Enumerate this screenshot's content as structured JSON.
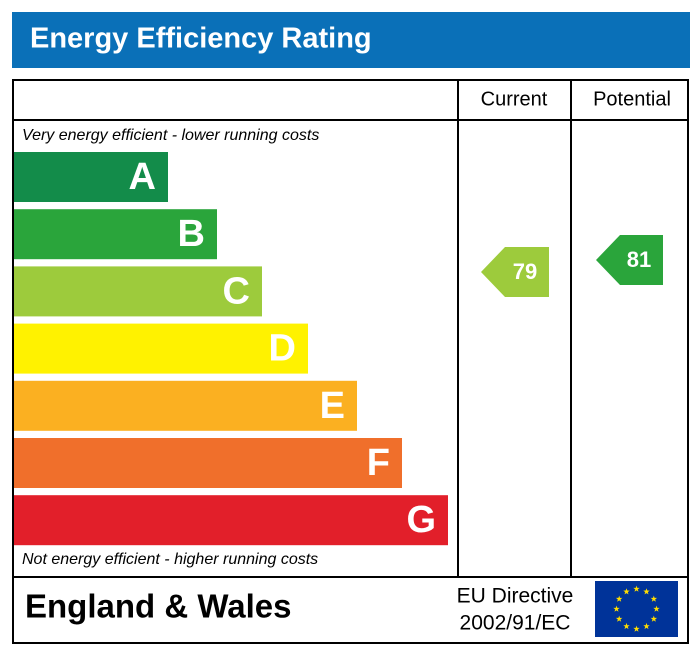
{
  "title": "Energy Efficiency Rating",
  "columns": [
    "Current",
    "Potential"
  ],
  "top_note": "Very energy efficient - lower running costs",
  "bottom_note": "Not energy efficient - higher running costs",
  "bands": [
    {
      "letter": "A",
      "color": "#138c4a"
    },
    {
      "letter": "B",
      "color": "#2aa53b"
    },
    {
      "letter": "C",
      "color": "#9dcb3c"
    },
    {
      "letter": "D",
      "color": "#fff200"
    },
    {
      "letter": "E",
      "color": "#fbb021"
    },
    {
      "letter": "F",
      "color": "#f06f2b"
    },
    {
      "letter": "G",
      "color": "#e21f2a"
    }
  ],
  "current": {
    "value": "79",
    "color": "#9dcb3c"
  },
  "potential": {
    "value": "81",
    "color": "#2aa53b"
  },
  "footer": {
    "region": "England & Wales",
    "directive": [
      "EU Directive",
      "2002/91/EC"
    ]
  }
}
